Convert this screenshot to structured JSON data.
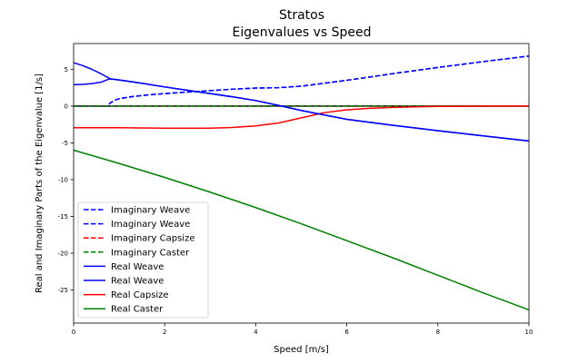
{
  "chart_data": {
    "type": "line",
    "title": "Stratos",
    "subtitle": "Eigenvalues vs Speed",
    "xlabel": "Speed [m/s]",
    "ylabel": "Real and Imaginary Parts of the Eigenvalue [1/s]",
    "xlim": [
      0,
      10
    ],
    "ylim": [
      -29.5,
      8.5
    ],
    "xticks": [
      0,
      2,
      4,
      6,
      8,
      10
    ],
    "yticks": [
      5,
      0,
      -5,
      -10,
      -15,
      -20,
      -25
    ],
    "grid": false,
    "legend_position": "lower-left",
    "reference_line": {
      "y": 0,
      "color": "#000000"
    },
    "series": [
      {
        "name": "Imaginary Weave",
        "color": "#0000ff",
        "style": "dashed",
        "x": [
          0,
          0.3,
          0.6,
          0.7,
          0.75,
          0.8,
          0.9,
          1.0,
          1.3,
          1.6,
          2.0,
          2.5,
          3.0,
          3.5,
          4.0,
          4.5,
          5.0,
          5.5,
          6.0,
          7.0,
          8.0,
          9.0,
          10.0
        ],
        "y": [
          0,
          0,
          0,
          0,
          0,
          0.4,
          0.8,
          1.0,
          1.3,
          1.5,
          1.7,
          1.9,
          2.1,
          2.3,
          2.45,
          2.5,
          2.7,
          3.1,
          3.5,
          4.4,
          5.25,
          6.05,
          6.8
        ]
      },
      {
        "name": "Imaginary Weave",
        "color": "#0000ff",
        "style": "dashed",
        "x": [
          0,
          0.3,
          0.6,
          0.7,
          0.75,
          0.8,
          0.9,
          1.0,
          1.3,
          1.6,
          2.0,
          2.5,
          3.0,
          3.5,
          4.0,
          4.5,
          5.0,
          5.5,
          6.0,
          7.0,
          8.0,
          9.0,
          10.0
        ],
        "y": [
          0,
          0,
          0,
          0,
          0,
          0.4,
          0.8,
          1.0,
          1.3,
          1.5,
          1.7,
          1.9,
          2.1,
          2.3,
          2.45,
          2.5,
          2.7,
          3.1,
          3.5,
          4.4,
          5.25,
          6.05,
          6.8
        ]
      },
      {
        "name": "Imaginary Capsize",
        "color": "#ff0000",
        "style": "dashed",
        "x": [
          0,
          10
        ],
        "y": [
          0,
          0
        ]
      },
      {
        "name": "Imaginary Caster",
        "color": "#008000",
        "style": "dashed",
        "x": [
          0,
          10
        ],
        "y": [
          0,
          0
        ]
      },
      {
        "name": "Real Weave",
        "color": "#0000ff",
        "style": "solid",
        "x": [
          0,
          0.2,
          0.4,
          0.6,
          0.75,
          0.8,
          1.0,
          1.5,
          2.0,
          2.5,
          3.0,
          3.5,
          4.0,
          4.5,
          5.0,
          5.5,
          6.0,
          7.0,
          8.0,
          9.0,
          10.0
        ],
        "y": [
          5.9,
          5.5,
          5.0,
          4.4,
          3.9,
          3.7,
          3.55,
          3.1,
          2.6,
          2.15,
          1.7,
          1.25,
          0.75,
          0.1,
          -0.6,
          -1.2,
          -1.8,
          -2.6,
          -3.35,
          -4.05,
          -4.75
        ]
      },
      {
        "name": "Real Weave",
        "color": "#0000ff",
        "style": "solid",
        "x": [
          0,
          0.2,
          0.4,
          0.6,
          0.75,
          0.8,
          1.0,
          1.5,
          2.0,
          2.5,
          3.0,
          3.5,
          4.0,
          4.5,
          5.0,
          5.5,
          6.0,
          7.0,
          8.0,
          9.0,
          10.0
        ],
        "y": [
          2.9,
          2.95,
          3.05,
          3.25,
          3.6,
          3.7,
          3.55,
          3.1,
          2.6,
          2.15,
          1.7,
          1.25,
          0.75,
          0.1,
          -0.6,
          -1.2,
          -1.8,
          -2.6,
          -3.35,
          -4.05,
          -4.75
        ]
      },
      {
        "name": "Real Capsize",
        "color": "#ff0000",
        "style": "solid",
        "x": [
          0,
          1.0,
          2.0,
          3.0,
          3.5,
          4.0,
          4.5,
          5.0,
          5.5,
          6.0,
          6.5,
          7.0,
          7.5,
          8.0,
          9.0,
          10.0
        ],
        "y": [
          -2.95,
          -2.95,
          -3.0,
          -3.0,
          -2.9,
          -2.7,
          -2.3,
          -1.6,
          -0.9,
          -0.5,
          -0.3,
          -0.18,
          -0.1,
          -0.05,
          -0.02,
          0.0
        ]
      },
      {
        "name": "Real Caster",
        "color": "#008000",
        "style": "solid",
        "x": [
          0,
          1,
          2,
          3,
          4,
          5,
          6,
          7,
          8,
          9,
          10
        ],
        "y": [
          -6.0,
          -7.8,
          -9.7,
          -11.7,
          -13.8,
          -16.0,
          -18.3,
          -20.6,
          -23.0,
          -25.4,
          -27.7
        ]
      }
    ]
  }
}
